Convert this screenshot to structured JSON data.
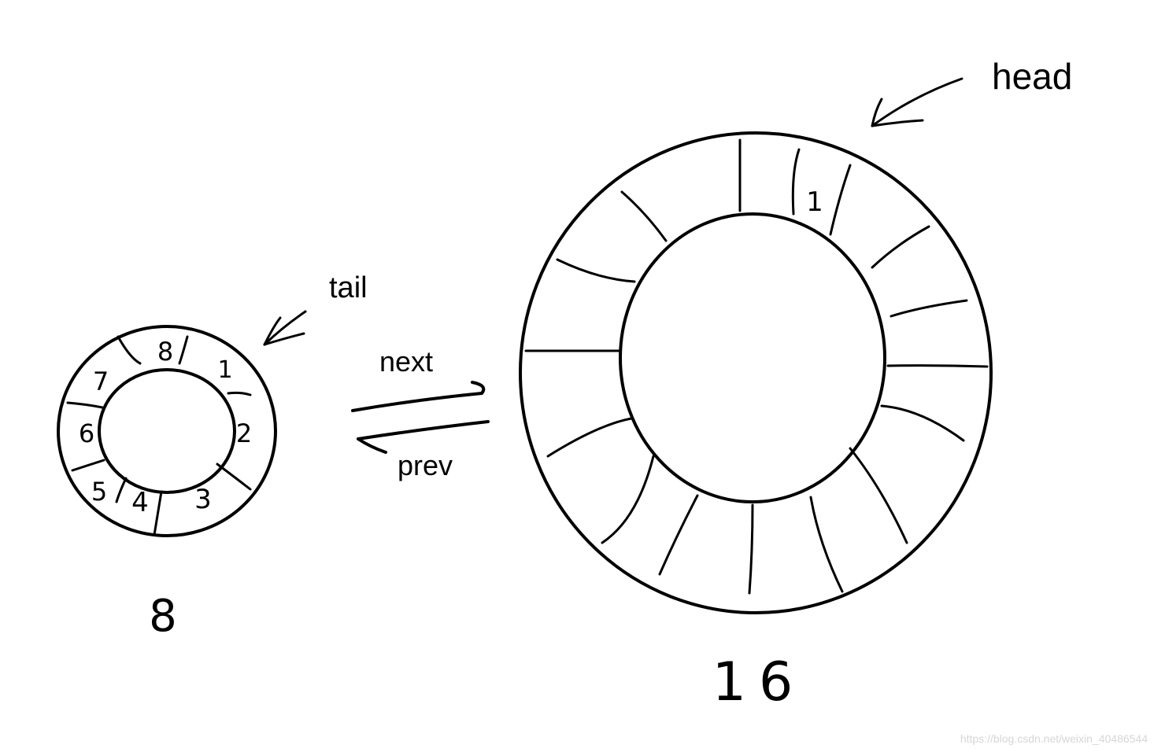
{
  "labels": {
    "head": "head",
    "tail": "tail",
    "next": "next",
    "prev": "prev",
    "small_size": "8",
    "large_size": "16"
  },
  "small_ring": {
    "slots": [
      "1",
      "2",
      "3",
      "4",
      "5",
      "6",
      "7",
      "8"
    ]
  },
  "large_ring": {
    "slot_count": 16,
    "marked_slot": "1"
  },
  "watermark": "https://blog.csdn.net/weixin_40486544",
  "colors": {
    "ink": "#000000",
    "background": "#ffffff",
    "watermark": "#d6d6d6"
  }
}
